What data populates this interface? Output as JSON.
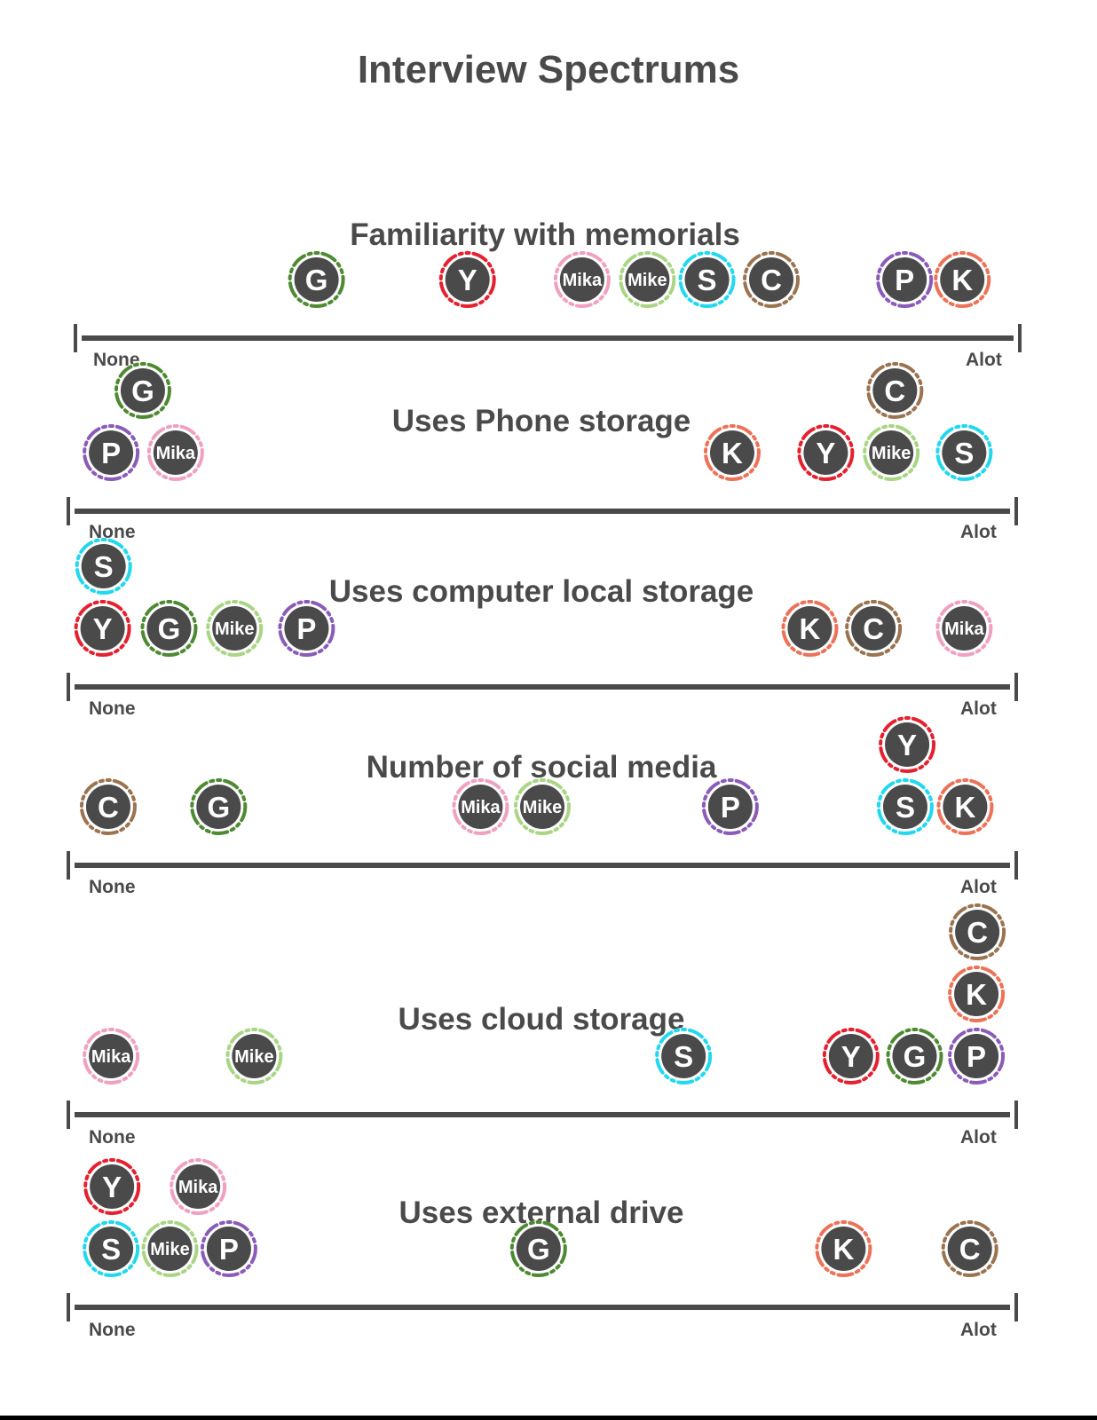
{
  "title": "Interview Spectrums",
  "colors": {
    "text": "#4a4a4a",
    "axis": "#4a4a4a",
    "token_fill": "#4a4a4a",
    "token_text": "#ffffff",
    "Y": "#e5202f",
    "Mika": "#f0a0c0",
    "Mike": "#a9d585",
    "S": "#22d8ee",
    "C": "#9a7450",
    "P": "#8a5cb8",
    "K": "#ec7258",
    "G": "#4e8a32"
  },
  "spectrums": [
    {
      "title": "Familiarity with memorials",
      "min_label": "None",
      "max_label": "Alot",
      "participants": [
        {
          "label": "G",
          "value": 25.2,
          "stack": 0
        },
        {
          "label": "Y",
          "value": 41.4,
          "stack": 0
        },
        {
          "label": "Mika",
          "value": 53.7,
          "stack": 0
        },
        {
          "label": "Mike",
          "value": 60.7,
          "stack": 0
        },
        {
          "label": "S",
          "value": 67.1,
          "stack": 0
        },
        {
          "label": "C",
          "value": 74.0,
          "stack": 0
        },
        {
          "label": "P",
          "value": 88.3,
          "stack": 0
        },
        {
          "label": "K",
          "value": 94.5,
          "stack": 0
        }
      ]
    },
    {
      "title": "Uses Phone storage",
      "min_label": "None",
      "max_label": "Alot",
      "participants": [
        {
          "label": "P",
          "value": 3.9,
          "stack": 0
        },
        {
          "label": "G",
          "value": 7.3,
          "stack": 1
        },
        {
          "label": "Mika",
          "value": 10.8,
          "stack": 0
        },
        {
          "label": "K",
          "value": 70.3,
          "stack": 0
        },
        {
          "label": "Y",
          "value": 80.3,
          "stack": 0
        },
        {
          "label": "Mike",
          "value": 87.3,
          "stack": 0
        },
        {
          "label": "C",
          "value": 87.7,
          "stack": 1
        },
        {
          "label": "S",
          "value": 95.1,
          "stack": 0
        }
      ]
    },
    {
      "title": "Uses computer local storage",
      "min_label": "None",
      "max_label": "Alot",
      "participants": [
        {
          "label": "Y",
          "value": 3.0,
          "stack": 0
        },
        {
          "label": "S",
          "value": 3.1,
          "stack": 1
        },
        {
          "label": "G",
          "value": 10.1,
          "stack": 0
        },
        {
          "label": "Mike",
          "value": 17.1,
          "stack": 0
        },
        {
          "label": "P",
          "value": 24.8,
          "stack": 0
        },
        {
          "label": "K",
          "value": 78.6,
          "stack": 0
        },
        {
          "label": "C",
          "value": 85.4,
          "stack": 0
        },
        {
          "label": "Mika",
          "value": 95.1,
          "stack": 0
        }
      ]
    },
    {
      "title": "Number of social media",
      "min_label": "None",
      "max_label": "Alot",
      "participants": [
        {
          "label": "C",
          "value": 3.6,
          "stack": 0
        },
        {
          "label": "G",
          "value": 15.4,
          "stack": 0
        },
        {
          "label": "Mika",
          "value": 43.4,
          "stack": 0
        },
        {
          "label": "Mike",
          "value": 50.0,
          "stack": 0
        },
        {
          "label": "P",
          "value": 70.1,
          "stack": 0
        },
        {
          "label": "S",
          "value": 88.8,
          "stack": 0
        },
        {
          "label": "Y",
          "value": 89.0,
          "stack": 1
        },
        {
          "label": "K",
          "value": 95.2,
          "stack": 0
        }
      ]
    },
    {
      "title": "Uses cloud storage",
      "min_label": "None",
      "max_label": "Alot",
      "participants": [
        {
          "label": "Mika",
          "value": 3.9,
          "stack": 0
        },
        {
          "label": "Mike",
          "value": 19.2,
          "stack": 0
        },
        {
          "label": "S",
          "value": 65.1,
          "stack": 0
        },
        {
          "label": "Y",
          "value": 83.0,
          "stack": 0
        },
        {
          "label": "G",
          "value": 89.8,
          "stack": 0
        },
        {
          "label": "P",
          "value": 96.4,
          "stack": 0
        },
        {
          "label": "K",
          "value": 96.4,
          "stack": 1
        },
        {
          "label": "C",
          "value": 96.5,
          "stack": 2
        }
      ]
    },
    {
      "title": "Uses external drive",
      "min_label": "None",
      "max_label": "Alot",
      "participants": [
        {
          "label": "S",
          "value": 3.9,
          "stack": 0
        },
        {
          "label": "Y",
          "value": 4.0,
          "stack": 1
        },
        {
          "label": "Mike",
          "value": 10.2,
          "stack": 0
        },
        {
          "label": "Mika",
          "value": 13.2,
          "stack": 1
        },
        {
          "label": "P",
          "value": 16.5,
          "stack": 0
        },
        {
          "label": "G",
          "value": 49.6,
          "stack": 0
        },
        {
          "label": "K",
          "value": 82.2,
          "stack": 0
        },
        {
          "label": "C",
          "value": 95.7,
          "stack": 0
        }
      ]
    }
  ]
}
